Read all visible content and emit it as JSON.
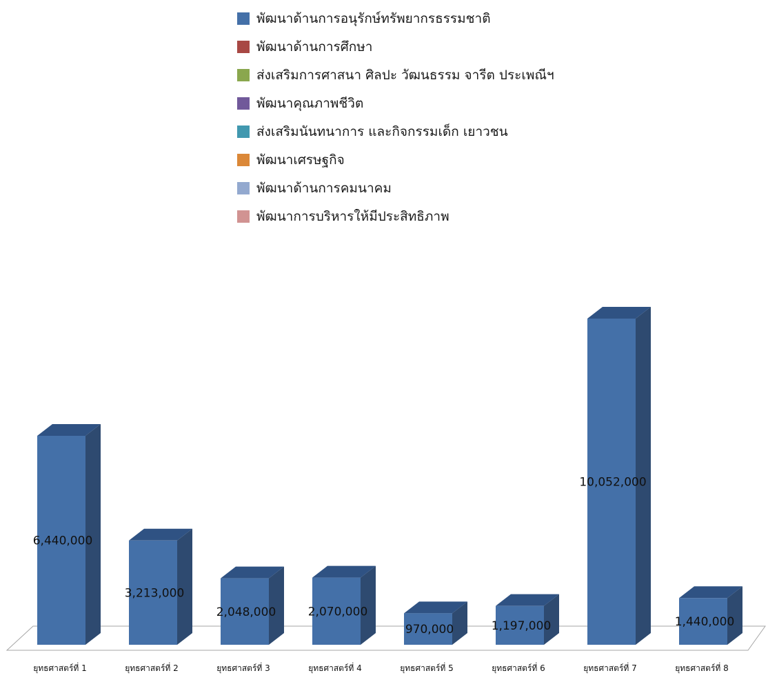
{
  "legend": {
    "items": [
      {
        "label": "พัฒนาด้านการอนุรักษ์ทรัพยากรธรรมชาติ",
        "color": "#4470A8"
      },
      {
        "label": "พัฒนาด้านการศึกษา",
        "color": "#A84844"
      },
      {
        "label": "ส่งเสริมการศาสนา ศิลปะ วัฒนธรรม จารีต ประเพณีฯ",
        "color": "#8AA74E"
      },
      {
        "label": "พัฒนาคุณภาพชีวิต",
        "color": "#71599A"
      },
      {
        "label": "ส่งเสริมนันทนาการ และกิจกรรมเด็ก เยาวชน",
        "color": "#4198AF"
      },
      {
        "label": "พัฒนาเศรษฐกิจ",
        "color": "#DB8838"
      },
      {
        "label": "พัฒนาด้านการคมนาคม",
        "color": "#93A9CF"
      },
      {
        "label": "พัฒนาการบริหารให้มีประสิทธิภาพ",
        "color": "#D19392"
      }
    ]
  },
  "chart_data": {
    "type": "bar",
    "categories": [
      "ยุทธศาสตร์ที่ 1",
      "ยุทธศาสตร์ที่ 2",
      "ยุทธศาสตร์ที่ 3",
      "ยุทธศาสตร์ที่ 4",
      "ยุทธศาสตร์ที่ 5",
      "ยุทธศาสตร์ที่ 6",
      "ยุทธศาสตร์ที่ 7",
      "ยุทธศาสตร์ที่ 8"
    ],
    "values": [
      6440000,
      3213000,
      2048000,
      2070000,
      970000,
      1197000,
      10052000,
      1440000
    ],
    "value_labels": [
      "6,440,000",
      "3,213,000",
      "2,048,000",
      "2,070,000",
      "970,000",
      "1,197,000",
      "10,052,000",
      "1,440,000"
    ],
    "bar_color": "#4470A8",
    "bar_side_color": "#2E4A70",
    "bar_top_color": "#2F5283",
    "style": "3d-column",
    "grid": false,
    "legend_position": "top",
    "title": "",
    "xlabel": "",
    "ylabel": ""
  }
}
